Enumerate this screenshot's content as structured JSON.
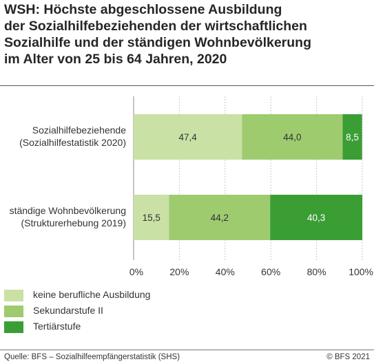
{
  "title_lines": [
    "WSH: Höchste abgeschlossene Ausbildung",
    "der Sozialhilfebeziehenden der wirtschaftlichen",
    "Sozialhilfe und der ständigen Wohnbevölkerung",
    "im Alter von 25 bis 64 Jahren, 2020"
  ],
  "chart_data": {
    "type": "bar",
    "orientation": "horizontal",
    "stacked": true,
    "categories": [
      [
        "Sozialhilfebeziehende",
        "(Sozialhilfestatistik 2020)"
      ],
      [
        "ständige Wohnbevölkerung",
        "(Strukturerhebung 2019)"
      ]
    ],
    "series": [
      {
        "name": "keine berufliche Ausbildung",
        "values": [
          47.4,
          15.5
        ],
        "labels": [
          "47,4",
          "15,5"
        ],
        "color": "#c9e1a5"
      },
      {
        "name": "Sekundarstufe II",
        "values": [
          44.0,
          44.2
        ],
        "labels": [
          "44,0",
          "44,2"
        ],
        "color": "#9ecb6e"
      },
      {
        "name": "Tertiärstufe",
        "values": [
          8.5,
          40.3
        ],
        "labels": [
          "8,5",
          "40,3"
        ],
        "color": "#3b9e35"
      }
    ],
    "xlim": [
      0,
      100
    ],
    "xticks": [
      "0%",
      "20%",
      "40%",
      "60%",
      "80%",
      "100%"
    ],
    "grid": true,
    "legend_position": "bottom-left"
  },
  "footer": {
    "source": "Quelle: BFS – Sozialhilfeempfängerstatistik (SHS)",
    "copyright": "© BFS 2021"
  }
}
